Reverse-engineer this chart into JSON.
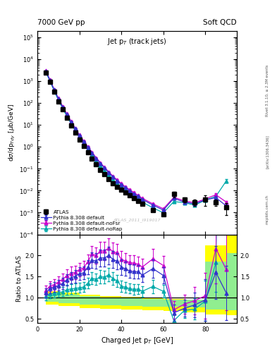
{
  "title_left": "7000 GeV pp",
  "title_right": "Soft QCD",
  "plot_title": "Jet p$_{T}$ (track jets)",
  "xlabel": "Charged Jet p$_{T}$ [GeV]",
  "ylabel_main": "d$\\sigma$/dp$_{Tdy}$ [$\\mu$b/GeV]",
  "ylabel_ratio": "Ratio to ATLAS",
  "watermark": "ATLAS_2011_I919017",
  "right_label_top": "Rivet 3.1.10, ≥ 2.3M events",
  "right_label_mid": "[arXiv:1306.3436]",
  "right_label_bot": "mcplots.cern.ch",
  "atlas_x": [
    4,
    6,
    8,
    10,
    12,
    14,
    16,
    18,
    20,
    22,
    24,
    26,
    28,
    30,
    32,
    34,
    36,
    38,
    40,
    42,
    44,
    46,
    48,
    50,
    55,
    60,
    65,
    70,
    75,
    80,
    85,
    90
  ],
  "atlas_y": [
    2500,
    900,
    320,
    120,
    50,
    21,
    9.5,
    4.5,
    2.1,
    1.1,
    0.55,
    0.28,
    0.16,
    0.09,
    0.055,
    0.033,
    0.022,
    0.015,
    0.011,
    0.008,
    0.006,
    0.0045,
    0.0034,
    0.0026,
    0.0013,
    0.00085,
    0.007,
    0.004,
    0.003,
    0.004,
    0.003,
    0.0018
  ],
  "atlas_yerr": [
    200,
    70,
    25,
    10,
    4,
    1.7,
    0.8,
    0.4,
    0.18,
    0.09,
    0.045,
    0.023,
    0.013,
    0.008,
    0.005,
    0.003,
    0.002,
    0.0013,
    0.001,
    0.0007,
    0.0005,
    0.0004,
    0.0003,
    0.00025,
    0.00015,
    0.0001,
    0.002,
    0.001,
    0.001,
    0.002,
    0.001,
    0.001
  ],
  "py_def_x": [
    4,
    6,
    8,
    10,
    12,
    14,
    16,
    18,
    20,
    22,
    24,
    26,
    28,
    30,
    32,
    34,
    36,
    38,
    40,
    42,
    44,
    46,
    48,
    50,
    55,
    60,
    65,
    70,
    75,
    80,
    85,
    90
  ],
  "py_def_y": [
    2800,
    1100,
    400,
    155,
    67,
    30,
    14,
    6.8,
    3.3,
    1.75,
    0.95,
    0.53,
    0.3,
    0.175,
    0.107,
    0.066,
    0.042,
    0.028,
    0.019,
    0.0135,
    0.0098,
    0.0073,
    0.0055,
    0.004,
    0.0022,
    0.0013,
    0.0045,
    0.003,
    0.0025,
    0.0038,
    0.0048,
    0.002
  ],
  "py_def_yerr": [
    150,
    55,
    20,
    8,
    3.5,
    1.4,
    0.65,
    0.33,
    0.16,
    0.087,
    0.047,
    0.026,
    0.015,
    0.0087,
    0.0053,
    0.0033,
    0.0021,
    0.0014,
    0.00095,
    0.00067,
    0.00049,
    0.00036,
    0.00027,
    0.0002,
    0.00011,
    6.5e-05,
    0.0004,
    0.00028,
    0.00022,
    0.0005,
    0.001,
    0.00035
  ],
  "py_noFsr_x": [
    4,
    6,
    8,
    10,
    12,
    14,
    16,
    18,
    20,
    22,
    24,
    26,
    28,
    30,
    32,
    34,
    36,
    38,
    40,
    42,
    44,
    46,
    48,
    50,
    55,
    60,
    65,
    70,
    75,
    80,
    85,
    90
  ],
  "py_noFsr_y": [
    2950,
    1150,
    420,
    165,
    72,
    32,
    15,
    7.2,
    3.5,
    1.88,
    1.02,
    0.57,
    0.32,
    0.19,
    0.116,
    0.072,
    0.046,
    0.031,
    0.021,
    0.015,
    0.011,
    0.0082,
    0.0061,
    0.0045,
    0.0025,
    0.0015,
    0.005,
    0.0034,
    0.0028,
    0.0042,
    0.0065,
    0.003
  ],
  "py_noFsr_yerr": [
    160,
    60,
    22,
    8.5,
    3.8,
    1.6,
    0.75,
    0.36,
    0.175,
    0.094,
    0.051,
    0.028,
    0.016,
    0.0095,
    0.0058,
    0.0036,
    0.0023,
    0.00155,
    0.00105,
    0.00075,
    0.00055,
    0.00041,
    0.00031,
    0.00022,
    0.000125,
    7.5e-05,
    0.00045,
    0.00034,
    0.00028,
    0.00055,
    0.0012,
    0.00045
  ],
  "py_noRap_x": [
    4,
    6,
    8,
    10,
    12,
    14,
    16,
    18,
    20,
    22,
    24,
    26,
    28,
    30,
    32,
    34,
    36,
    38,
    40,
    42,
    44,
    46,
    48,
    50,
    55,
    60,
    65,
    70,
    75,
    80,
    85,
    90
  ],
  "py_noRap_y": [
    2600,
    980,
    355,
    135,
    57,
    25,
    11.5,
    5.5,
    2.6,
    1.38,
    0.74,
    0.41,
    0.23,
    0.135,
    0.082,
    0.051,
    0.032,
    0.021,
    0.014,
    0.01,
    0.0073,
    0.0054,
    0.0041,
    0.003,
    0.00165,
    0.00098,
    0.0032,
    0.0028,
    0.0022,
    0.0037,
    0.0055,
    0.028
  ],
  "py_noRap_yerr": [
    140,
    50,
    18,
    7,
    3.0,
    1.25,
    0.57,
    0.275,
    0.13,
    0.069,
    0.037,
    0.02,
    0.0115,
    0.0067,
    0.0041,
    0.0025,
    0.0016,
    0.00105,
    0.0007,
    0.0005,
    0.000365,
    0.00027,
    0.000205,
    0.00015,
    8.2e-05,
    4.9e-05,
    0.00027,
    0.00024,
    0.00019,
    0.0005,
    0.001,
    0.005
  ],
  "color_atlas": "#000000",
  "color_py_def": "#3333cc",
  "color_py_noFsr": "#cc00cc",
  "color_py_noRap": "#00aaaa",
  "band_yellow_edges": [
    4,
    10,
    20,
    30,
    40,
    50,
    60,
    70,
    80,
    90,
    95
  ],
  "band_yellow_low": [
    0.84,
    0.8,
    0.76,
    0.74,
    0.72,
    0.7,
    0.68,
    0.66,
    0.6,
    0.58
  ],
  "band_yellow_high": [
    1.16,
    1.12,
    1.08,
    1.04,
    1.02,
    1.0,
    0.98,
    0.96,
    2.25,
    2.55
  ],
  "band_green_edges": [
    4,
    10,
    20,
    30,
    40,
    50,
    60,
    70,
    80,
    90,
    95
  ],
  "band_green_low": [
    0.9,
    0.87,
    0.84,
    0.82,
    0.8,
    0.79,
    0.78,
    0.77,
    0.72,
    0.7
  ],
  "band_green_high": [
    1.1,
    1.07,
    1.04,
    1.01,
    0.99,
    0.98,
    0.96,
    0.95,
    1.85,
    2.05
  ],
  "xlim": [
    0,
    95
  ],
  "ylim_main": [
    0.0001,
    200000.0
  ],
  "ylim_ratio": [
    0.4,
    2.5
  ],
  "ratio_yticks": [
    0.5,
    1.0,
    1.5,
    2.0
  ]
}
